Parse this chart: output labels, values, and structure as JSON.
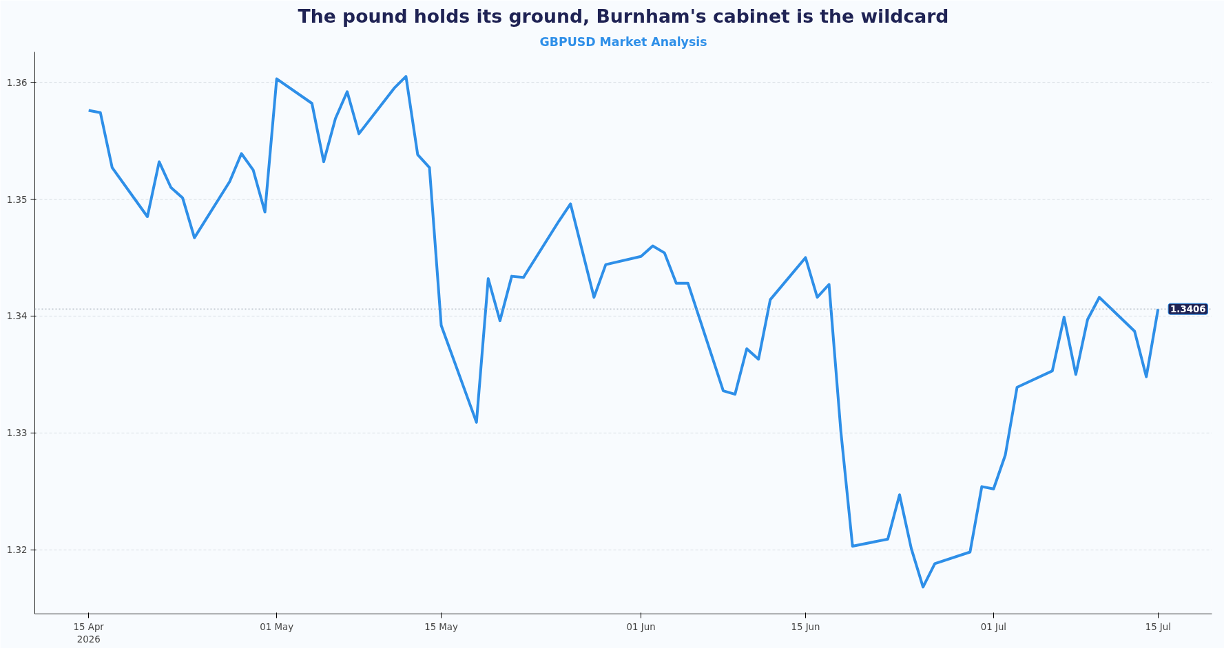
{
  "chart_data": {
    "type": "line",
    "title": "The pound holds its ground, Burnham's cabinet is the wildcard",
    "subtitle": "GBPUSD Market Analysis",
    "x": [
      "2026-04-15",
      "2026-04-16",
      "2026-04-17",
      "2026-04-20",
      "2026-04-21",
      "2026-04-22",
      "2026-04-23",
      "2026-04-24",
      "2026-04-27",
      "2026-04-28",
      "2026-04-29",
      "2026-04-30",
      "2026-05-01",
      "2026-05-04",
      "2026-05-05",
      "2026-05-06",
      "2026-05-07",
      "2026-05-08",
      "2026-05-11",
      "2026-05-12",
      "2026-05-13",
      "2026-05-14",
      "2026-05-15",
      "2026-05-18",
      "2026-05-19",
      "2026-05-20",
      "2026-05-21",
      "2026-05-22",
      "2026-05-25",
      "2026-05-26",
      "2026-05-28",
      "2026-05-29",
      "2026-06-01",
      "2026-06-02",
      "2026-06-03",
      "2026-06-04",
      "2026-06-05",
      "2026-06-08",
      "2026-06-09",
      "2026-06-10",
      "2026-06-11",
      "2026-06-12",
      "2026-06-15",
      "2026-06-16",
      "2026-06-17",
      "2026-06-18",
      "2026-06-19",
      "2026-06-22",
      "2026-06-23",
      "2026-06-24",
      "2026-06-25",
      "2026-06-26",
      "2026-06-29",
      "2026-06-30",
      "2026-07-01",
      "2026-07-02",
      "2026-07-03",
      "2026-07-06",
      "2026-07-07",
      "2026-07-08",
      "2026-07-09",
      "2026-07-10",
      "2026-07-13",
      "2026-07-14",
      "2026-07-15"
    ],
    "series": [
      {
        "color": "#2e8fe8",
        "values": [
          1.3576,
          1.3574,
          1.3527,
          1.3485,
          1.3532,
          1.351,
          1.3501,
          1.3467,
          1.3515,
          1.3539,
          1.3525,
          1.3489,
          1.3603,
          1.3582,
          1.3532,
          1.3569,
          1.3592,
          1.3556,
          1.3595,
          1.3605,
          1.3538,
          1.3527,
          1.3392,
          1.3309,
          1.3432,
          1.3396,
          1.3434,
          1.3433,
          1.3481,
          1.3496,
          1.3416,
          1.3444,
          1.3451,
          1.346,
          1.3454,
          1.3428,
          1.3428,
          1.3336,
          1.3333,
          1.3372,
          1.3363,
          1.3414,
          1.345,
          1.3416,
          1.3427,
          1.3302,
          1.3203,
          1.3209,
          1.3247,
          1.3201,
          1.3168,
          1.3188,
          1.3198,
          1.3254,
          1.3252,
          1.3281,
          1.3339,
          1.3353,
          1.3399,
          1.335,
          1.3397,
          1.3416,
          1.3387,
          1.3348,
          1.3406
        ]
      }
    ],
    "xlim": [
      "2026-04-10T10:00",
      "2026-07-19T14:00"
    ],
    "xticks": [
      {
        "value": "2026-04-15",
        "label": "15 Apr\n2026"
      },
      {
        "value": "2026-05-01",
        "label": "01 May"
      },
      {
        "value": "2026-05-15",
        "label": "15 May"
      },
      {
        "value": "2026-06-01",
        "label": "01 Jun"
      },
      {
        "value": "2026-06-15",
        "label": "15 Jun"
      },
      {
        "value": "2026-07-01",
        "label": "01 Jul"
      },
      {
        "value": "2026-07-15",
        "label": "15 Jul"
      }
    ],
    "ylim": [
      1.3145,
      1.3626
    ],
    "yticks": [
      1.32,
      1.33,
      1.34,
      1.35,
      1.36
    ],
    "grid": "y",
    "marker": "none",
    "line_style": "solid",
    "ref_lines": [
      {
        "axis": "y",
        "value": 1.3406,
        "label": "1.3406",
        "color": "#9aa5b1",
        "line_style": "dotted"
      }
    ]
  }
}
